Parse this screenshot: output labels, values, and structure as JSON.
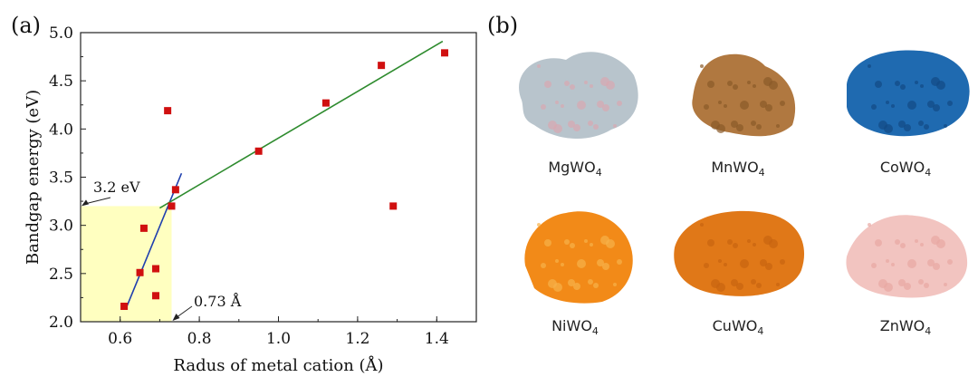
{
  "panels": {
    "a": "(a)",
    "b": "(b)"
  },
  "chart_data": {
    "type": "scatter",
    "xlabel": "Radus of metal cation (Å)",
    "ylabel": "Bandgap energy (eV)",
    "xlim": [
      0.5,
      1.5
    ],
    "ylim": [
      2.0,
      5.0
    ],
    "xticks": [
      "0.6",
      "0.8",
      "1.0",
      "1.2",
      "1.4"
    ],
    "yticks": [
      "2.0",
      "2.5",
      "3.0",
      "3.5",
      "4.0",
      "4.5",
      "5.0"
    ],
    "points": [
      {
        "x": 0.61,
        "y": 2.16
      },
      {
        "x": 0.65,
        "y": 2.51
      },
      {
        "x": 0.66,
        "y": 2.97
      },
      {
        "x": 0.69,
        "y": 2.27
      },
      {
        "x": 0.69,
        "y": 2.55
      },
      {
        "x": 0.72,
        "y": 4.19
      },
      {
        "x": 0.73,
        "y": 3.2
      },
      {
        "x": 0.74,
        "y": 3.37
      },
      {
        "x": 0.95,
        "y": 3.77
      },
      {
        "x": 1.12,
        "y": 4.27
      },
      {
        "x": 1.26,
        "y": 4.66
      },
      {
        "x": 1.29,
        "y": 3.2
      },
      {
        "x": 1.42,
        "y": 4.79
      }
    ],
    "fit_lines": [
      {
        "color": "#1f3fae",
        "x": [
          0.615,
          0.755
        ],
        "y": [
          2.14,
          3.54
        ]
      },
      {
        "color": "#2e8b2e",
        "x": [
          0.7,
          1.415
        ],
        "y": [
          3.18,
          4.91
        ]
      }
    ],
    "highlight_region": {
      "x": [
        0.5,
        0.73
      ],
      "y": [
        2.0,
        3.2
      ],
      "color": "#ffffc0"
    },
    "annotations": [
      {
        "text": "3.2 eV",
        "x": 0.5,
        "y": 3.2
      },
      {
        "text": "0.73 Å",
        "x": 0.73,
        "y": 2.0
      }
    ],
    "point_color": "#d01010",
    "grid": false
  },
  "samples": [
    {
      "name": "MgWO",
      "sub": "4",
      "color": "#b8c4cc",
      "accent": "#d8a8b0"
    },
    {
      "name": "MnWO",
      "sub": "4",
      "color": "#b07840",
      "accent": "#8a5a28"
    },
    {
      "name": "CoWO",
      "sub": "4",
      "color": "#1f6ab0",
      "accent": "#134a85"
    },
    {
      "name": "NiWO",
      "sub": "4",
      "color": "#f28a18",
      "accent": "#f7b24a"
    },
    {
      "name": "CuWO",
      "sub": "4",
      "color": "#e07818",
      "accent": "#c86410"
    },
    {
      "name": "ZnWO",
      "sub": "4",
      "color": "#f2c4c0",
      "accent": "#e8a8a2"
    }
  ]
}
